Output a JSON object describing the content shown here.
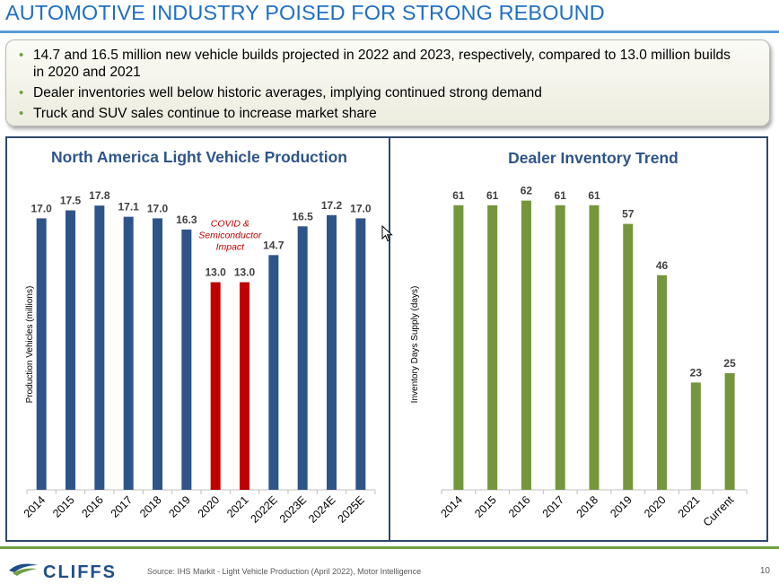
{
  "title": "AUTOMOTIVE INDUSTRY POISED FOR STRONG REBOUND",
  "bullets": [
    "14.7 and 16.5 million new vehicle builds projected in 2022 and 2023, respectively, compared to 13.0 million builds in 2020 and 2021",
    "Dealer inventories well below historic averages, implying continued strong demand",
    "Truck and SUV sales continue to increase market share"
  ],
  "chart_data": [
    {
      "type": "bar",
      "title": "North America Light Vehicle Production",
      "ylabel": "Production Vehicles (millions)",
      "xlabel": "",
      "categories": [
        "2014",
        "2015",
        "2016",
        "2017",
        "2018",
        "2019",
        "2020",
        "2021",
        "2022E",
        "2023E",
        "2024E",
        "2025E"
      ],
      "values": [
        17.0,
        17.5,
        17.8,
        17.1,
        17.0,
        16.3,
        13.0,
        13.0,
        14.7,
        16.5,
        17.2,
        17.0
      ],
      "value_labels": [
        "17.0",
        "17.5",
        "17.8",
        "17.1",
        "17.0",
        "16.3",
        "13.0",
        "13.0",
        "14.7",
        "16.5",
        "17.2",
        "17.0"
      ],
      "bar_colors": [
        "#2e5589",
        "#2e5589",
        "#2e5589",
        "#2e5589",
        "#2e5589",
        "#2e5589",
        "#c00000",
        "#c00000",
        "#2e5589",
        "#2e5589",
        "#2e5589",
        "#2e5589"
      ],
      "annotation": {
        "text": [
          "COVID &",
          "Semiconductor",
          "Impact"
        ],
        "color": "#c00000"
      },
      "grid": false
    },
    {
      "type": "bar",
      "title": "Dealer Inventory Trend",
      "ylabel": "Inventory Days Supply (days)",
      "xlabel": "",
      "categories": [
        "2014",
        "2015",
        "2016",
        "2017",
        "2018",
        "2019",
        "2020",
        "2021",
        "Current"
      ],
      "values": [
        61,
        61,
        62,
        61,
        61,
        57,
        46,
        23,
        25
      ],
      "value_labels": [
        "61",
        "61",
        "62",
        "61",
        "61",
        "57",
        "46",
        "23",
        "25"
      ],
      "bar_colors": [
        "#74963c",
        "#74963c",
        "#74963c",
        "#74963c",
        "#74963c",
        "#74963c",
        "#74963c",
        "#74963c",
        "#74963c"
      ],
      "grid": false
    }
  ],
  "footer": {
    "logo_text": "CLIFFS",
    "source": "Source: IHS Markit - Light Vehicle Production (April 2022), Motor Intelligence",
    "page_number": "10"
  },
  "colors": {
    "title": "#1f6fc5",
    "accent_green": "#70a040",
    "navy": "#1f4f8a"
  },
  "icons": {
    "logo": "cliffs-logo-icon",
    "cursor": "mouse-cursor-icon"
  }
}
